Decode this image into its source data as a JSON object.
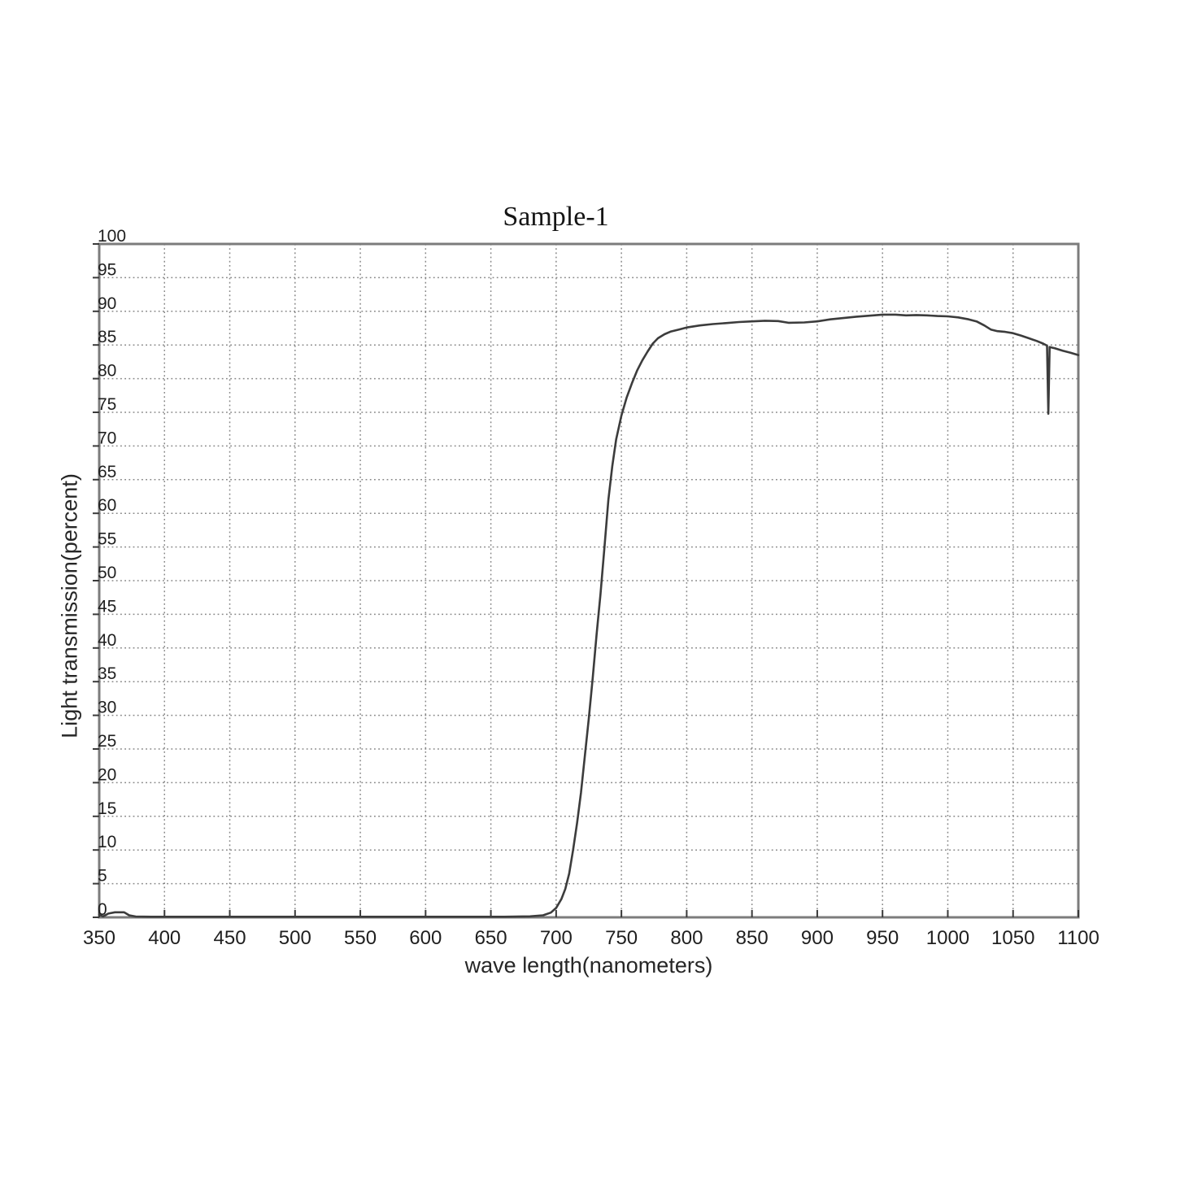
{
  "chart_data": {
    "type": "line",
    "title": "Sample-1",
    "xlabel": "wave length(nanometers)",
    "ylabel": "Light transmission(percent)",
    "xlim": [
      350,
      1100
    ],
    "ylim": [
      0,
      100
    ],
    "x_ticks": [
      350,
      400,
      450,
      500,
      550,
      600,
      650,
      700,
      750,
      800,
      850,
      900,
      950,
      1000,
      1050,
      1100
    ],
    "y_ticks": [
      0,
      5,
      10,
      15,
      20,
      25,
      30,
      35,
      40,
      45,
      50,
      55,
      60,
      65,
      70,
      75,
      80,
      85,
      90,
      95,
      100
    ],
    "grid": "dotted",
    "legend": "none",
    "colors": {
      "line": "#3c3c3c",
      "grid": "#878787",
      "border": "#7c7c7c",
      "tick": "#3a3a3a",
      "text": "#1f1f1f",
      "background": "#ffffff"
    },
    "series": [
      {
        "name": "Sample-1",
        "points": [
          [
            350,
            0.4
          ],
          [
            353,
            0.15
          ],
          [
            357,
            0.55
          ],
          [
            362,
            0.75
          ],
          [
            369,
            0.75
          ],
          [
            373,
            0.3
          ],
          [
            378,
            0.12
          ],
          [
            390,
            0.08
          ],
          [
            420,
            0.08
          ],
          [
            450,
            0.08
          ],
          [
            480,
            0.08
          ],
          [
            510,
            0.08
          ],
          [
            540,
            0.08
          ],
          [
            570,
            0.08
          ],
          [
            600,
            0.08
          ],
          [
            630,
            0.08
          ],
          [
            660,
            0.08
          ],
          [
            680,
            0.15
          ],
          [
            690,
            0.3
          ],
          [
            696,
            0.7
          ],
          [
            700,
            1.4
          ],
          [
            704,
            2.7
          ],
          [
            707,
            4.2
          ],
          [
            710,
            6.5
          ],
          [
            713,
            10
          ],
          [
            716,
            14
          ],
          [
            719,
            18.5
          ],
          [
            722,
            24
          ],
          [
            725,
            29.5
          ],
          [
            728,
            35.5
          ],
          [
            731,
            42
          ],
          [
            734,
            48
          ],
          [
            737,
            55
          ],
          [
            740,
            62
          ],
          [
            743,
            67
          ],
          [
            746,
            71
          ],
          [
            750,
            74.5
          ],
          [
            754,
            77.2
          ],
          [
            758,
            79.3
          ],
          [
            762,
            81.2
          ],
          [
            766,
            82.7
          ],
          [
            770,
            84
          ],
          [
            774,
            85.2
          ],
          [
            778,
            86
          ],
          [
            783,
            86.6
          ],
          [
            788,
            87
          ],
          [
            794,
            87.3
          ],
          [
            800,
            87.6
          ],
          [
            810,
            87.9
          ],
          [
            820,
            88.1
          ],
          [
            830,
            88.25
          ],
          [
            840,
            88.4
          ],
          [
            850,
            88.5
          ],
          [
            860,
            88.6
          ],
          [
            870,
            88.55
          ],
          [
            878,
            88.3
          ],
          [
            890,
            88.35
          ],
          [
            900,
            88.5
          ],
          [
            910,
            88.8
          ],
          [
            920,
            89.0
          ],
          [
            930,
            89.2
          ],
          [
            940,
            89.35
          ],
          [
            950,
            89.5
          ],
          [
            960,
            89.5
          ],
          [
            968,
            89.4
          ],
          [
            976,
            89.45
          ],
          [
            984,
            89.4
          ],
          [
            992,
            89.3
          ],
          [
            1000,
            89.25
          ],
          [
            1008,
            89.1
          ],
          [
            1016,
            88.8
          ],
          [
            1022,
            88.5
          ],
          [
            1028,
            87.9
          ],
          [
            1033,
            87.3
          ],
          [
            1038,
            87.05
          ],
          [
            1044,
            86.95
          ],
          [
            1050,
            86.75
          ],
          [
            1056,
            86.4
          ],
          [
            1062,
            86.0
          ],
          [
            1068,
            85.6
          ],
          [
            1073,
            85.2
          ],
          [
            1076,
            84.9
          ],
          [
            1077,
            74.8
          ],
          [
            1078,
            84.7
          ],
          [
            1082,
            84.5
          ],
          [
            1088,
            84.15
          ],
          [
            1094,
            83.85
          ],
          [
            1100,
            83.5
          ]
        ]
      }
    ]
  }
}
